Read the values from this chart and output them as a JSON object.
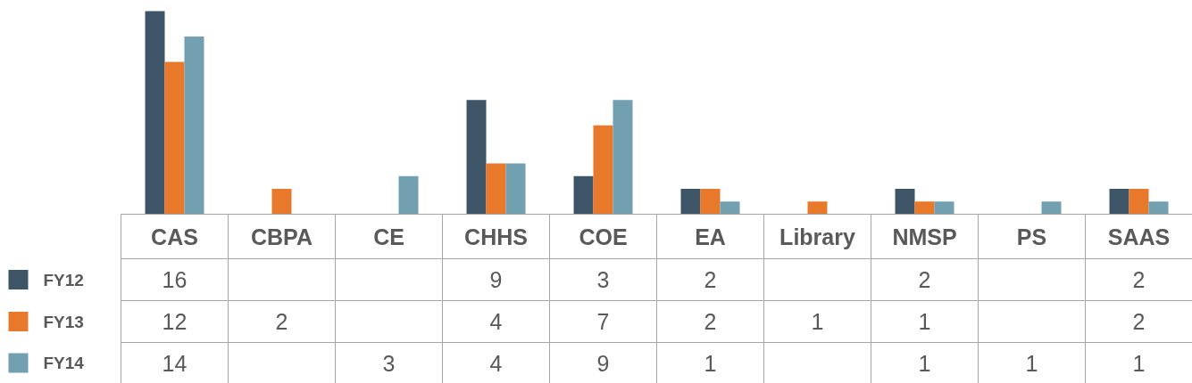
{
  "chart_data": {
    "type": "bar",
    "categories": [
      "CAS",
      "CBPA",
      "CE",
      "CHHS",
      "COE",
      "EA",
      "Library",
      "NMSP",
      "PS",
      "SAAS"
    ],
    "series": [
      {
        "name": "FY12",
        "color": "#3d5566",
        "values": [
          16,
          null,
          null,
          9,
          3,
          2,
          null,
          2,
          null,
          2
        ]
      },
      {
        "name": "FY13",
        "color": "#e8792a",
        "values": [
          12,
          2,
          null,
          4,
          7,
          2,
          1,
          1,
          null,
          2
        ]
      },
      {
        "name": "FY14",
        "color": "#72a0b0",
        "values": [
          14,
          null,
          3,
          4,
          9,
          1,
          null,
          1,
          1,
          1
        ]
      }
    ],
    "data_labels": true,
    "legend": "left",
    "grid": false
  }
}
